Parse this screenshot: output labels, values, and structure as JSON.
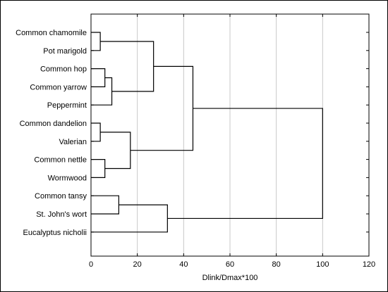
{
  "chart_data": {
    "type": "dendrogram",
    "xlabel": "Dlink/Dmax*100",
    "xlim": [
      0,
      120
    ],
    "xticks": [
      0,
      20,
      40,
      60,
      80,
      100,
      120
    ],
    "grid": "vertical",
    "leaves": [
      "Common chamomile",
      "Pot marigold",
      "Common hop",
      "Common yarrow",
      "Peppermint",
      "Common dandelion",
      "Valerian",
      "Common nettle",
      "Wormwood",
      "Common tansy",
      "St. John's wort",
      "Eucalyptus nicholii"
    ],
    "merges": [
      {
        "id": "c1",
        "left": "L0",
        "right": "L1",
        "height": 4
      },
      {
        "id": "c2",
        "left": "L2",
        "right": "L3",
        "height": 6
      },
      {
        "id": "c3",
        "left": "c2",
        "right": "L4",
        "height": 9
      },
      {
        "id": "c4",
        "left": "c1",
        "right": "c3",
        "height": 27
      },
      {
        "id": "c5",
        "left": "L5",
        "right": "L6",
        "height": 4
      },
      {
        "id": "c6",
        "left": "L7",
        "right": "L8",
        "height": 6
      },
      {
        "id": "c7",
        "left": "c5",
        "right": "c6",
        "height": 17
      },
      {
        "id": "c8",
        "left": "c4",
        "right": "c7",
        "height": 44
      },
      {
        "id": "c9",
        "left": "L9",
        "right": "L10",
        "height": 12
      },
      {
        "id": "c10",
        "left": "c9",
        "right": "L11",
        "height": 33
      },
      {
        "id": "c11",
        "left": "c8",
        "right": "c10",
        "height": 100
      }
    ]
  }
}
